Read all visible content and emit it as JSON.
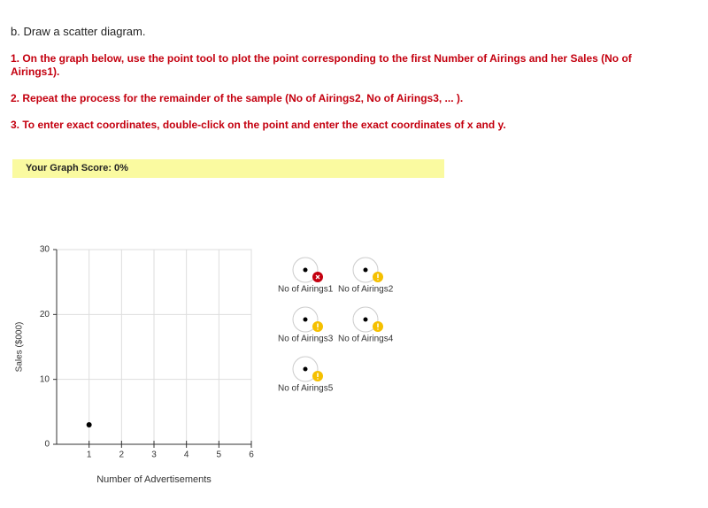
{
  "heading": "b. Draw a scatter diagram.",
  "instructions": [
    "1. On the graph below, use the point tool to plot the point corresponding to the first Number of Airings and her Sales (No of Airings1).",
    "2. Repeat the process for the remainder of the sample (No of Airings2, No of Airings3, ... ).",
    "3. To enter exact coordinates, double-click on the point and enter the exact coordinates of x and y."
  ],
  "score": "Your Graph Score: 0%",
  "chart_data": {
    "type": "scatter",
    "x_label": "Number of Advertisements",
    "y_label": "Sales ($000)",
    "x": [
      1
    ],
    "values": [
      3
    ],
    "color": "#000000",
    "xlim": [
      0,
      6
    ],
    "ylim": [
      0,
      30
    ],
    "xticks": [
      1,
      2,
      3,
      4,
      5,
      6
    ],
    "yticks": [
      0,
      10,
      20,
      30
    ],
    "grid": true
  },
  "tools": [
    {
      "label": "No of Airings1",
      "status": "error"
    },
    {
      "label": "No of Airings2",
      "status": "warning"
    },
    {
      "label": "No of Airings3",
      "status": "warning"
    },
    {
      "label": "No of Airings4",
      "status": "warning"
    },
    {
      "label": "No of Airings5",
      "status": "warning"
    }
  ]
}
